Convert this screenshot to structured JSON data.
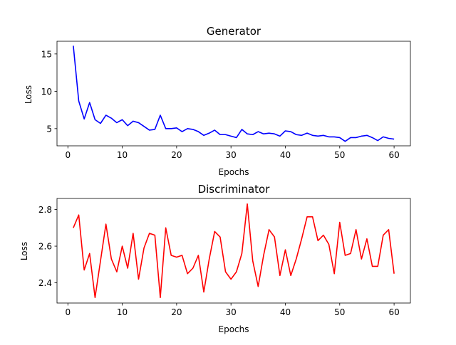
{
  "chart_data": [
    {
      "type": "line",
      "title": "Generator",
      "xlabel": "Epochs",
      "ylabel": "Loss",
      "xlim": [
        -2,
        63
      ],
      "ylim": [
        2.7,
        16.7
      ],
      "xticks": [
        0,
        10,
        20,
        30,
        40,
        50,
        60
      ],
      "yticks": [
        5,
        10,
        15
      ],
      "grid": false,
      "series": [
        {
          "color": "#0000ff",
          "x": [
            1,
            2,
            3,
            4,
            5,
            6,
            7,
            8,
            9,
            10,
            11,
            12,
            13,
            14,
            15,
            16,
            17,
            18,
            19,
            20,
            21,
            22,
            23,
            24,
            25,
            26,
            27,
            28,
            29,
            30,
            31,
            32,
            33,
            34,
            35,
            36,
            37,
            38,
            39,
            40,
            41,
            42,
            43,
            44,
            45,
            46,
            47,
            48,
            49,
            50,
            51,
            52,
            53,
            54,
            55,
            56,
            57,
            58,
            59,
            60
          ],
          "values": [
            16.1,
            8.7,
            6.3,
            8.5,
            6.2,
            5.7,
            6.8,
            6.4,
            5.8,
            6.2,
            5.4,
            6.0,
            5.8,
            5.3,
            4.8,
            4.9,
            6.8,
            5.0,
            5.0,
            5.1,
            4.6,
            5.0,
            4.9,
            4.6,
            4.1,
            4.4,
            4.8,
            4.2,
            4.2,
            4.0,
            3.8,
            4.9,
            4.3,
            4.2,
            4.6,
            4.3,
            4.4,
            4.3,
            4.0,
            4.7,
            4.6,
            4.2,
            4.1,
            4.4,
            4.1,
            4.0,
            4.1,
            3.9,
            3.9,
            3.8,
            3.3,
            3.8,
            3.8,
            4.0,
            4.1,
            3.8,
            3.4,
            3.9,
            3.7,
            3.6
          ]
        }
      ]
    },
    {
      "type": "line",
      "title": "Discriminator",
      "xlabel": "Epochs",
      "ylabel": "Loss",
      "xlim": [
        -2,
        63
      ],
      "ylim": [
        2.29,
        2.86
      ],
      "xticks": [
        0,
        10,
        20,
        30,
        40,
        50,
        60
      ],
      "yticks": [
        2.4,
        2.6,
        2.8
      ],
      "ytick_labels": [
        "2.4",
        "2.6",
        "2.8"
      ],
      "grid": false,
      "series": [
        {
          "color": "#ff0000",
          "x": [
            1,
            2,
            3,
            4,
            5,
            6,
            7,
            8,
            9,
            10,
            11,
            12,
            13,
            14,
            15,
            16,
            17,
            18,
            19,
            20,
            21,
            22,
            23,
            24,
            25,
            26,
            27,
            28,
            29,
            30,
            31,
            32,
            33,
            34,
            35,
            36,
            37,
            38,
            39,
            40,
            41,
            42,
            43,
            44,
            45,
            46,
            47,
            48,
            49,
            50,
            51,
            52,
            53,
            54,
            55,
            56,
            57,
            58,
            59,
            60
          ],
          "values": [
            2.7,
            2.77,
            2.47,
            2.56,
            2.32,
            2.52,
            2.72,
            2.53,
            2.46,
            2.6,
            2.48,
            2.67,
            2.42,
            2.59,
            2.67,
            2.66,
            2.32,
            2.7,
            2.55,
            2.54,
            2.55,
            2.45,
            2.48,
            2.55,
            2.35,
            2.53,
            2.68,
            2.65,
            2.46,
            2.42,
            2.46,
            2.56,
            2.83,
            2.52,
            2.38,
            2.55,
            2.69,
            2.65,
            2.44,
            2.58,
            2.44,
            2.53,
            2.64,
            2.76,
            2.76,
            2.63,
            2.66,
            2.61,
            2.45,
            2.73,
            2.55,
            2.56,
            2.69,
            2.53,
            2.64,
            2.49,
            2.49,
            2.66,
            2.69,
            2.45
          ]
        }
      ]
    }
  ]
}
